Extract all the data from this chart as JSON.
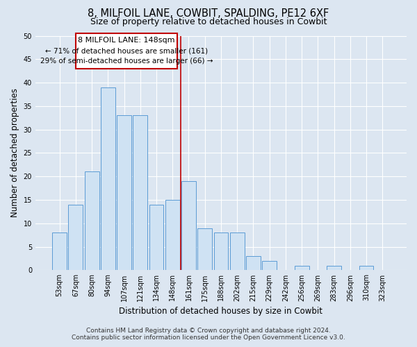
{
  "title": "8, MILFOIL LANE, COWBIT, SPALDING, PE12 6XF",
  "subtitle": "Size of property relative to detached houses in Cowbit",
  "xlabel": "Distribution of detached houses by size in Cowbit",
  "ylabel": "Number of detached properties",
  "bar_labels": [
    "53sqm",
    "67sqm",
    "80sqm",
    "94sqm",
    "107sqm",
    "121sqm",
    "134sqm",
    "148sqm",
    "161sqm",
    "175sqm",
    "188sqm",
    "202sqm",
    "215sqm",
    "229sqm",
    "242sqm",
    "256sqm",
    "269sqm",
    "283sqm",
    "296sqm",
    "310sqm",
    "323sqm"
  ],
  "bar_values": [
    8,
    14,
    21,
    39,
    33,
    33,
    14,
    15,
    19,
    9,
    8,
    8,
    3,
    2,
    0,
    1,
    0,
    1,
    0,
    1,
    0
  ],
  "bar_color": "#cfe2f3",
  "bar_edge_color": "#5b9bd5",
  "highlight_bar_index": 7,
  "highlight_line_color": "#c00000",
  "ylim": [
    0,
    50
  ],
  "yticks": [
    0,
    5,
    10,
    15,
    20,
    25,
    30,
    35,
    40,
    45,
    50
  ],
  "annotation_title": "8 MILFOIL LANE: 148sqm",
  "annotation_line1": "← 71% of detached houses are smaller (161)",
  "annotation_line2": "29% of semi-detached houses are larger (66) →",
  "annotation_box_color": "#ffffff",
  "annotation_box_edge": "#c00000",
  "footer_line1": "Contains HM Land Registry data © Crown copyright and database right 2024.",
  "footer_line2": "Contains public sector information licensed under the Open Government Licence v3.0.",
  "bg_color": "#dce6f1",
  "plot_bg_color": "#dce6f1",
  "grid_color": "#ffffff",
  "title_fontsize": 10.5,
  "subtitle_fontsize": 9,
  "axis_label_fontsize": 8.5,
  "tick_fontsize": 7,
  "footer_fontsize": 6.5,
  "annotation_fontsize": 8
}
